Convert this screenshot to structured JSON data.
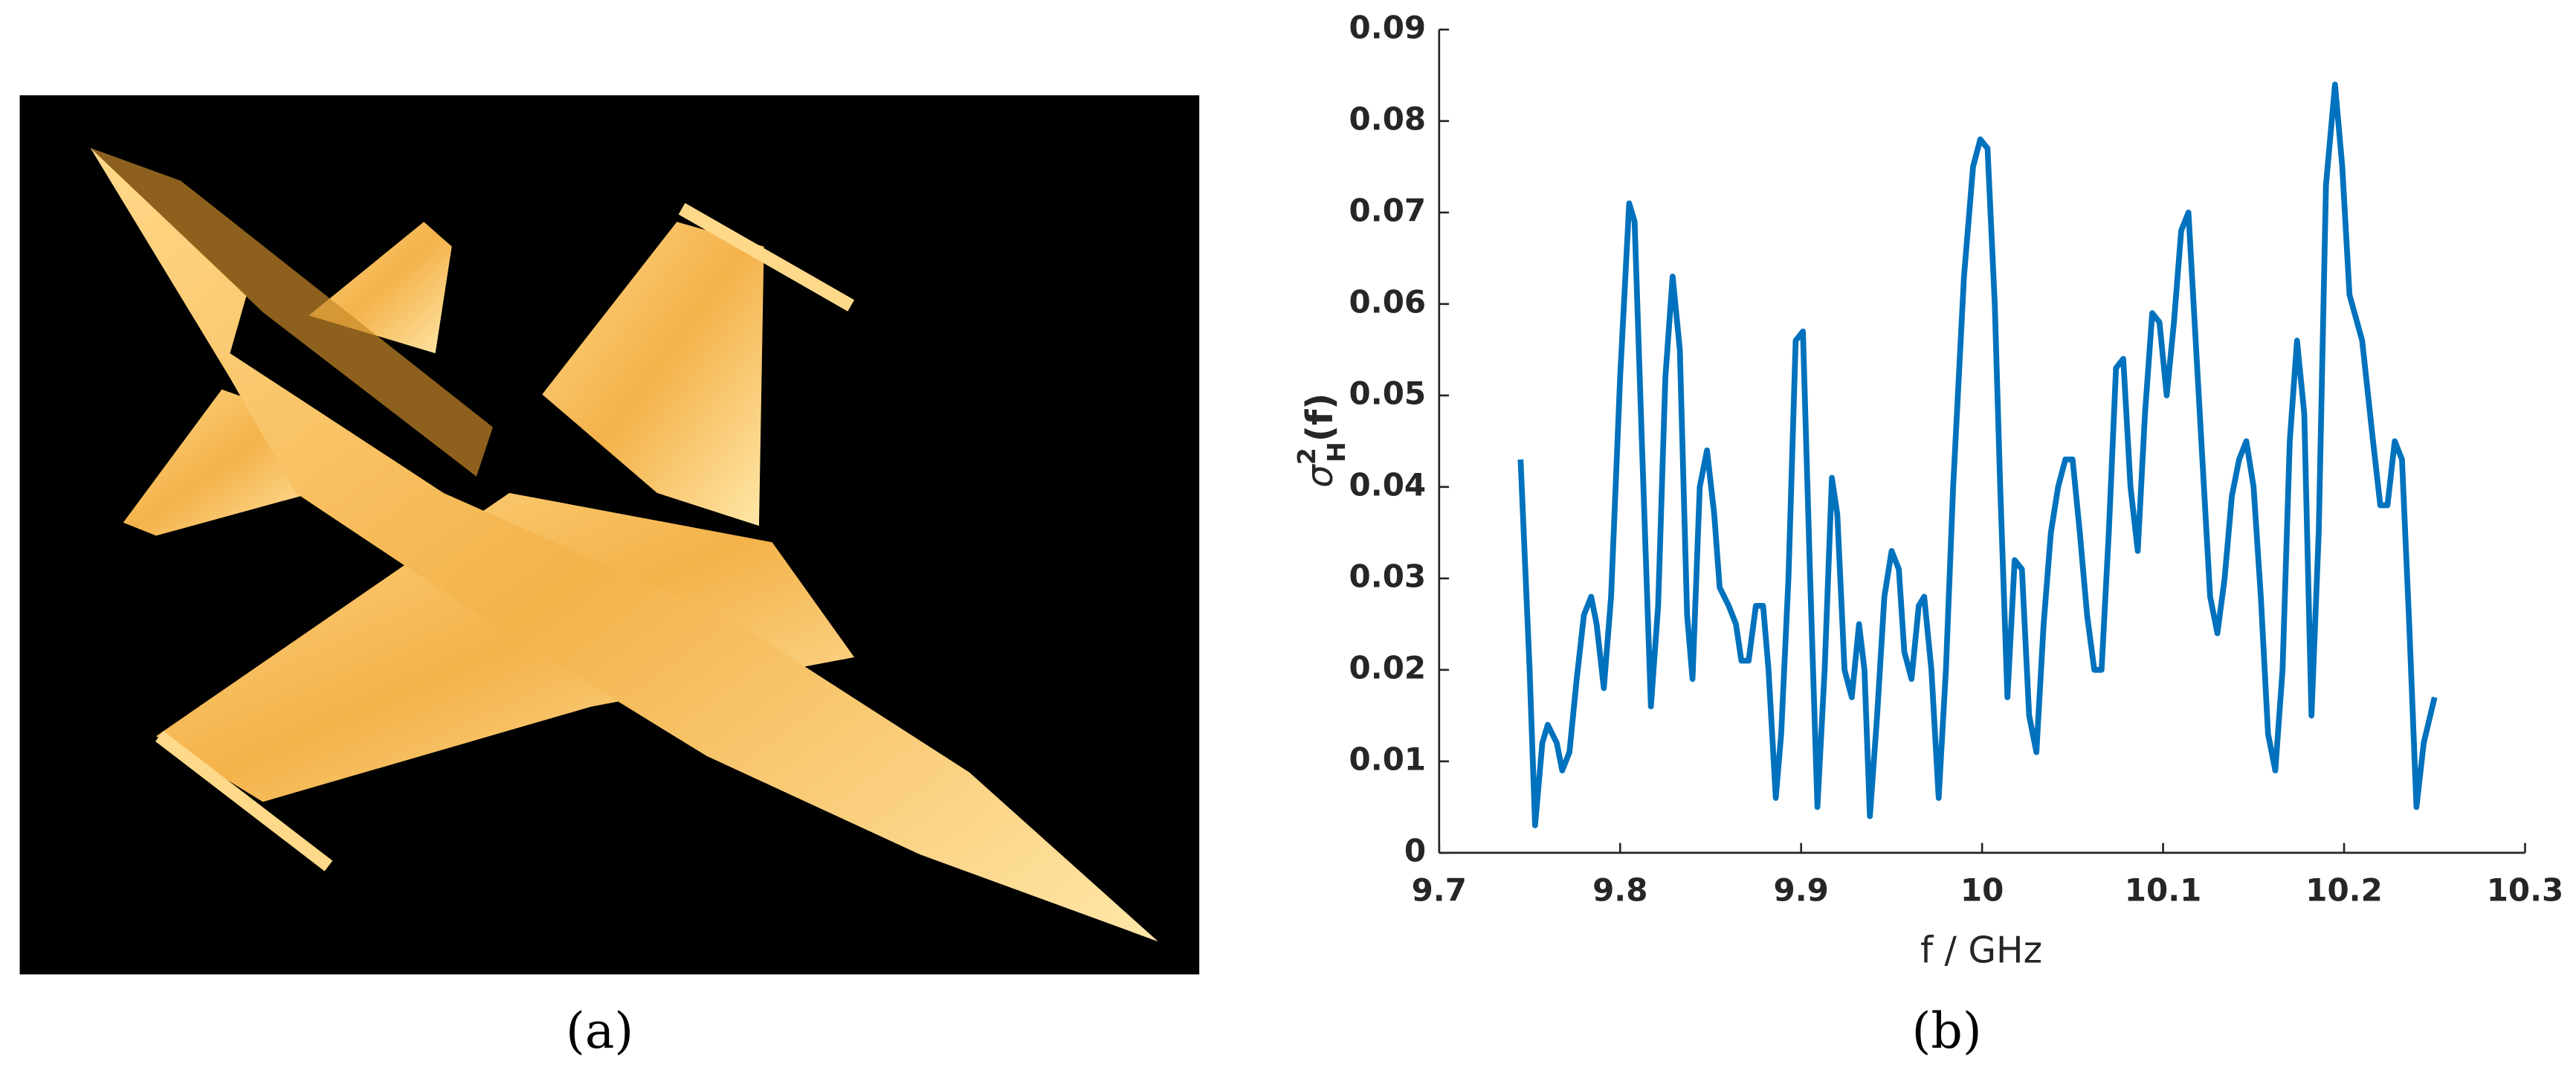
{
  "chart_data": {
    "type": "line",
    "captions": [
      "(a)",
      "(b)"
    ],
    "x_label": "f / GHz",
    "y_label": {
      "symbol": "σ",
      "sup": "2",
      "sub": "H",
      "arg": "(f)"
    },
    "xlim": [
      9.7,
      10.3
    ],
    "xticks": [
      9.7,
      9.8,
      9.9,
      10,
      10.1,
      10.2,
      10.3
    ],
    "ylim": [
      0,
      0.09
    ],
    "yticks": [
      0,
      0.01,
      0.02,
      0.03,
      0.04,
      0.05,
      0.06,
      0.07,
      0.08,
      0.09
    ],
    "color": "#0072bd",
    "x": [
      9.745,
      9.75,
      9.753,
      9.757,
      9.76,
      9.765,
      9.768,
      9.772,
      9.776,
      9.78,
      9.784,
      9.787,
      9.791,
      9.795,
      9.8,
      9.805,
      9.808,
      9.812,
      9.817,
      9.821,
      9.825,
      9.829,
      9.833,
      9.837,
      9.84,
      9.844,
      9.848,
      9.852,
      9.855,
      9.86,
      9.864,
      9.867,
      9.871,
      9.875,
      9.879,
      9.882,
      9.886,
      9.889,
      9.893,
      9.897,
      9.901,
      9.905,
      9.909,
      9.913,
      9.917,
      9.92,
      9.924,
      9.928,
      9.932,
      9.935,
      9.938,
      9.942,
      9.946,
      9.95,
      9.954,
      9.957,
      9.961,
      9.965,
      9.968,
      9.972,
      9.976,
      9.98,
      9.984,
      9.99,
      9.995,
      9.999,
      10.003,
      10.007,
      10.01,
      10.014,
      10.018,
      10.022,
      10.026,
      10.03,
      10.034,
      10.038,
      10.042,
      10.046,
      10.05,
      10.054,
      10.058,
      10.062,
      10.066,
      10.07,
      10.074,
      10.078,
      10.082,
      10.086,
      10.09,
      10.094,
      10.098,
      10.102,
      10.106,
      10.11,
      10.114,
      10.118,
      10.122,
      10.126,
      10.13,
      10.134,
      10.138,
      10.142,
      10.146,
      10.15,
      10.154,
      10.158,
      10.162,
      10.166,
      10.17,
      10.174,
      10.178,
      10.182,
      10.186,
      10.19,
      10.195,
      10.199,
      10.203,
      10.21,
      10.216,
      10.22,
      10.224,
      10.228,
      10.232,
      10.236,
      10.24,
      10.244,
      10.25
    ],
    "values": [
      0.043,
      0.02,
      0.003,
      0.012,
      0.014,
      0.012,
      0.009,
      0.011,
      0.019,
      0.026,
      0.028,
      0.025,
      0.018,
      0.028,
      0.052,
      0.071,
      0.069,
      0.045,
      0.016,
      0.027,
      0.052,
      0.063,
      0.055,
      0.026,
      0.019,
      0.04,
      0.044,
      0.037,
      0.029,
      0.027,
      0.025,
      0.021,
      0.021,
      0.027,
      0.027,
      0.02,
      0.006,
      0.013,
      0.03,
      0.056,
      0.057,
      0.03,
      0.005,
      0.02,
      0.041,
      0.037,
      0.02,
      0.017,
      0.025,
      0.02,
      0.004,
      0.015,
      0.028,
      0.033,
      0.031,
      0.022,
      0.019,
      0.027,
      0.028,
      0.02,
      0.006,
      0.02,
      0.04,
      0.063,
      0.075,
      0.078,
      0.077,
      0.06,
      0.04,
      0.017,
      0.032,
      0.031,
      0.015,
      0.011,
      0.025,
      0.035,
      0.04,
      0.043,
      0.043,
      0.035,
      0.026,
      0.02,
      0.02,
      0.035,
      0.053,
      0.054,
      0.04,
      0.033,
      0.048,
      0.059,
      0.058,
      0.05,
      0.058,
      0.068,
      0.07,
      0.056,
      0.042,
      0.028,
      0.024,
      0.03,
      0.039,
      0.043,
      0.045,
      0.04,
      0.028,
      0.013,
      0.009,
      0.02,
      0.045,
      0.056,
      0.048,
      0.015,
      0.035,
      0.073,
      0.084,
      0.075,
      0.061,
      0.056,
      0.045,
      0.038,
      0.038,
      0.045,
      0.043,
      0.025,
      0.005,
      0.012,
      0.017
    ]
  }
}
